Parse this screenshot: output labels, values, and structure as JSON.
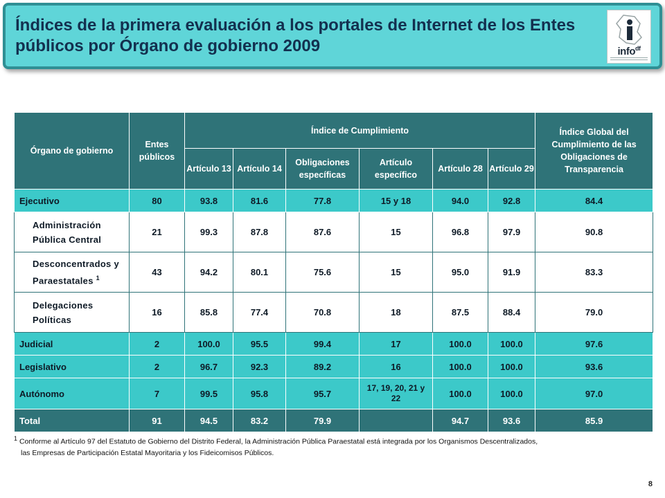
{
  "header": {
    "title": "Índices de la primera evaluación a los portales de Internet de los Entes públicos por Órgano de gobierno 2009",
    "logo_text": "info",
    "logo_suffix": "df"
  },
  "table": {
    "headers": {
      "organo": "Órgano de gobierno",
      "entes": "Entes públicos",
      "indice_cumplimiento": "Índice de Cumplimiento",
      "indice_global": "Índice Global del Cumplimiento de las Obligaciones de Transparencia",
      "art13": "Artículo 13",
      "art14": "Artículo 14",
      "obligaciones": "Obligaciones específicas",
      "art_especifico": "Artículo específico",
      "art28": "Artículo 28",
      "art29": "Artículo 29"
    },
    "rows": [
      {
        "organo": "Ejecutivo",
        "entes": "80",
        "art13": "93.8",
        "art14": "81.6",
        "oblig": "77.8",
        "art_esp": "15 y 18",
        "art28": "94.0",
        "art29": "92.8",
        "global": "84.4"
      },
      {
        "organo": "Administración Pública Central",
        "entes": "21",
        "art13": "99.3",
        "art14": "87.8",
        "oblig": "87.6",
        "art_esp": "15",
        "art28": "96.8",
        "art29": "97.9",
        "global": "90.8"
      },
      {
        "organo": "Desconcentrados y Paraestatales",
        "note": "1",
        "entes": "43",
        "art13": "94.2",
        "art14": "80.1",
        "oblig": "75.6",
        "art_esp": "15",
        "art28": "95.0",
        "art29": "91.9",
        "global": "83.3"
      },
      {
        "organo": "Delegaciones Políticas",
        "entes": "16",
        "art13": "85.8",
        "art14": "77.4",
        "oblig": "70.8",
        "art_esp": "18",
        "art28": "87.5",
        "art29": "88.4",
        "global": "79.0"
      },
      {
        "organo": "Judicial",
        "entes": "2",
        "art13": "100.0",
        "art14": "95.5",
        "oblig": "99.4",
        "art_esp": "17",
        "art28": "100.0",
        "art29": "100.0",
        "global": "97.6"
      },
      {
        "organo": "Legislativo",
        "entes": "2",
        "art13": "96.7",
        "art14": "92.3",
        "oblig": "89.2",
        "art_esp": "16",
        "art28": "100.0",
        "art29": "100.0",
        "global": "93.6"
      },
      {
        "organo": "Autónomo",
        "entes": "7",
        "art13": "99.5",
        "art14": "95.8",
        "oblig": "95.7",
        "art_esp": "17, 19, 20, 21 y 22",
        "art28": "100.0",
        "art29": "100.0",
        "global": "97.0"
      },
      {
        "organo": "Total",
        "entes": "91",
        "art13": "94.5",
        "art14": "83.2",
        "oblig": "79.9",
        "art_esp": "",
        "art28": "94.7",
        "art29": "93.6",
        "global": "85.9"
      }
    ]
  },
  "footnote": {
    "marker": "1",
    "line1": "Conforme al Artículo 97 del Estatuto de Gobierno del Distrito Federal, la Administración Pública Paraestatal está integrada por los Organismos Descentralizados,",
    "line2": "las Empresas de Participación Estatal Mayoritaria y los Fideicomisos Públicos."
  },
  "page_number": "8"
}
